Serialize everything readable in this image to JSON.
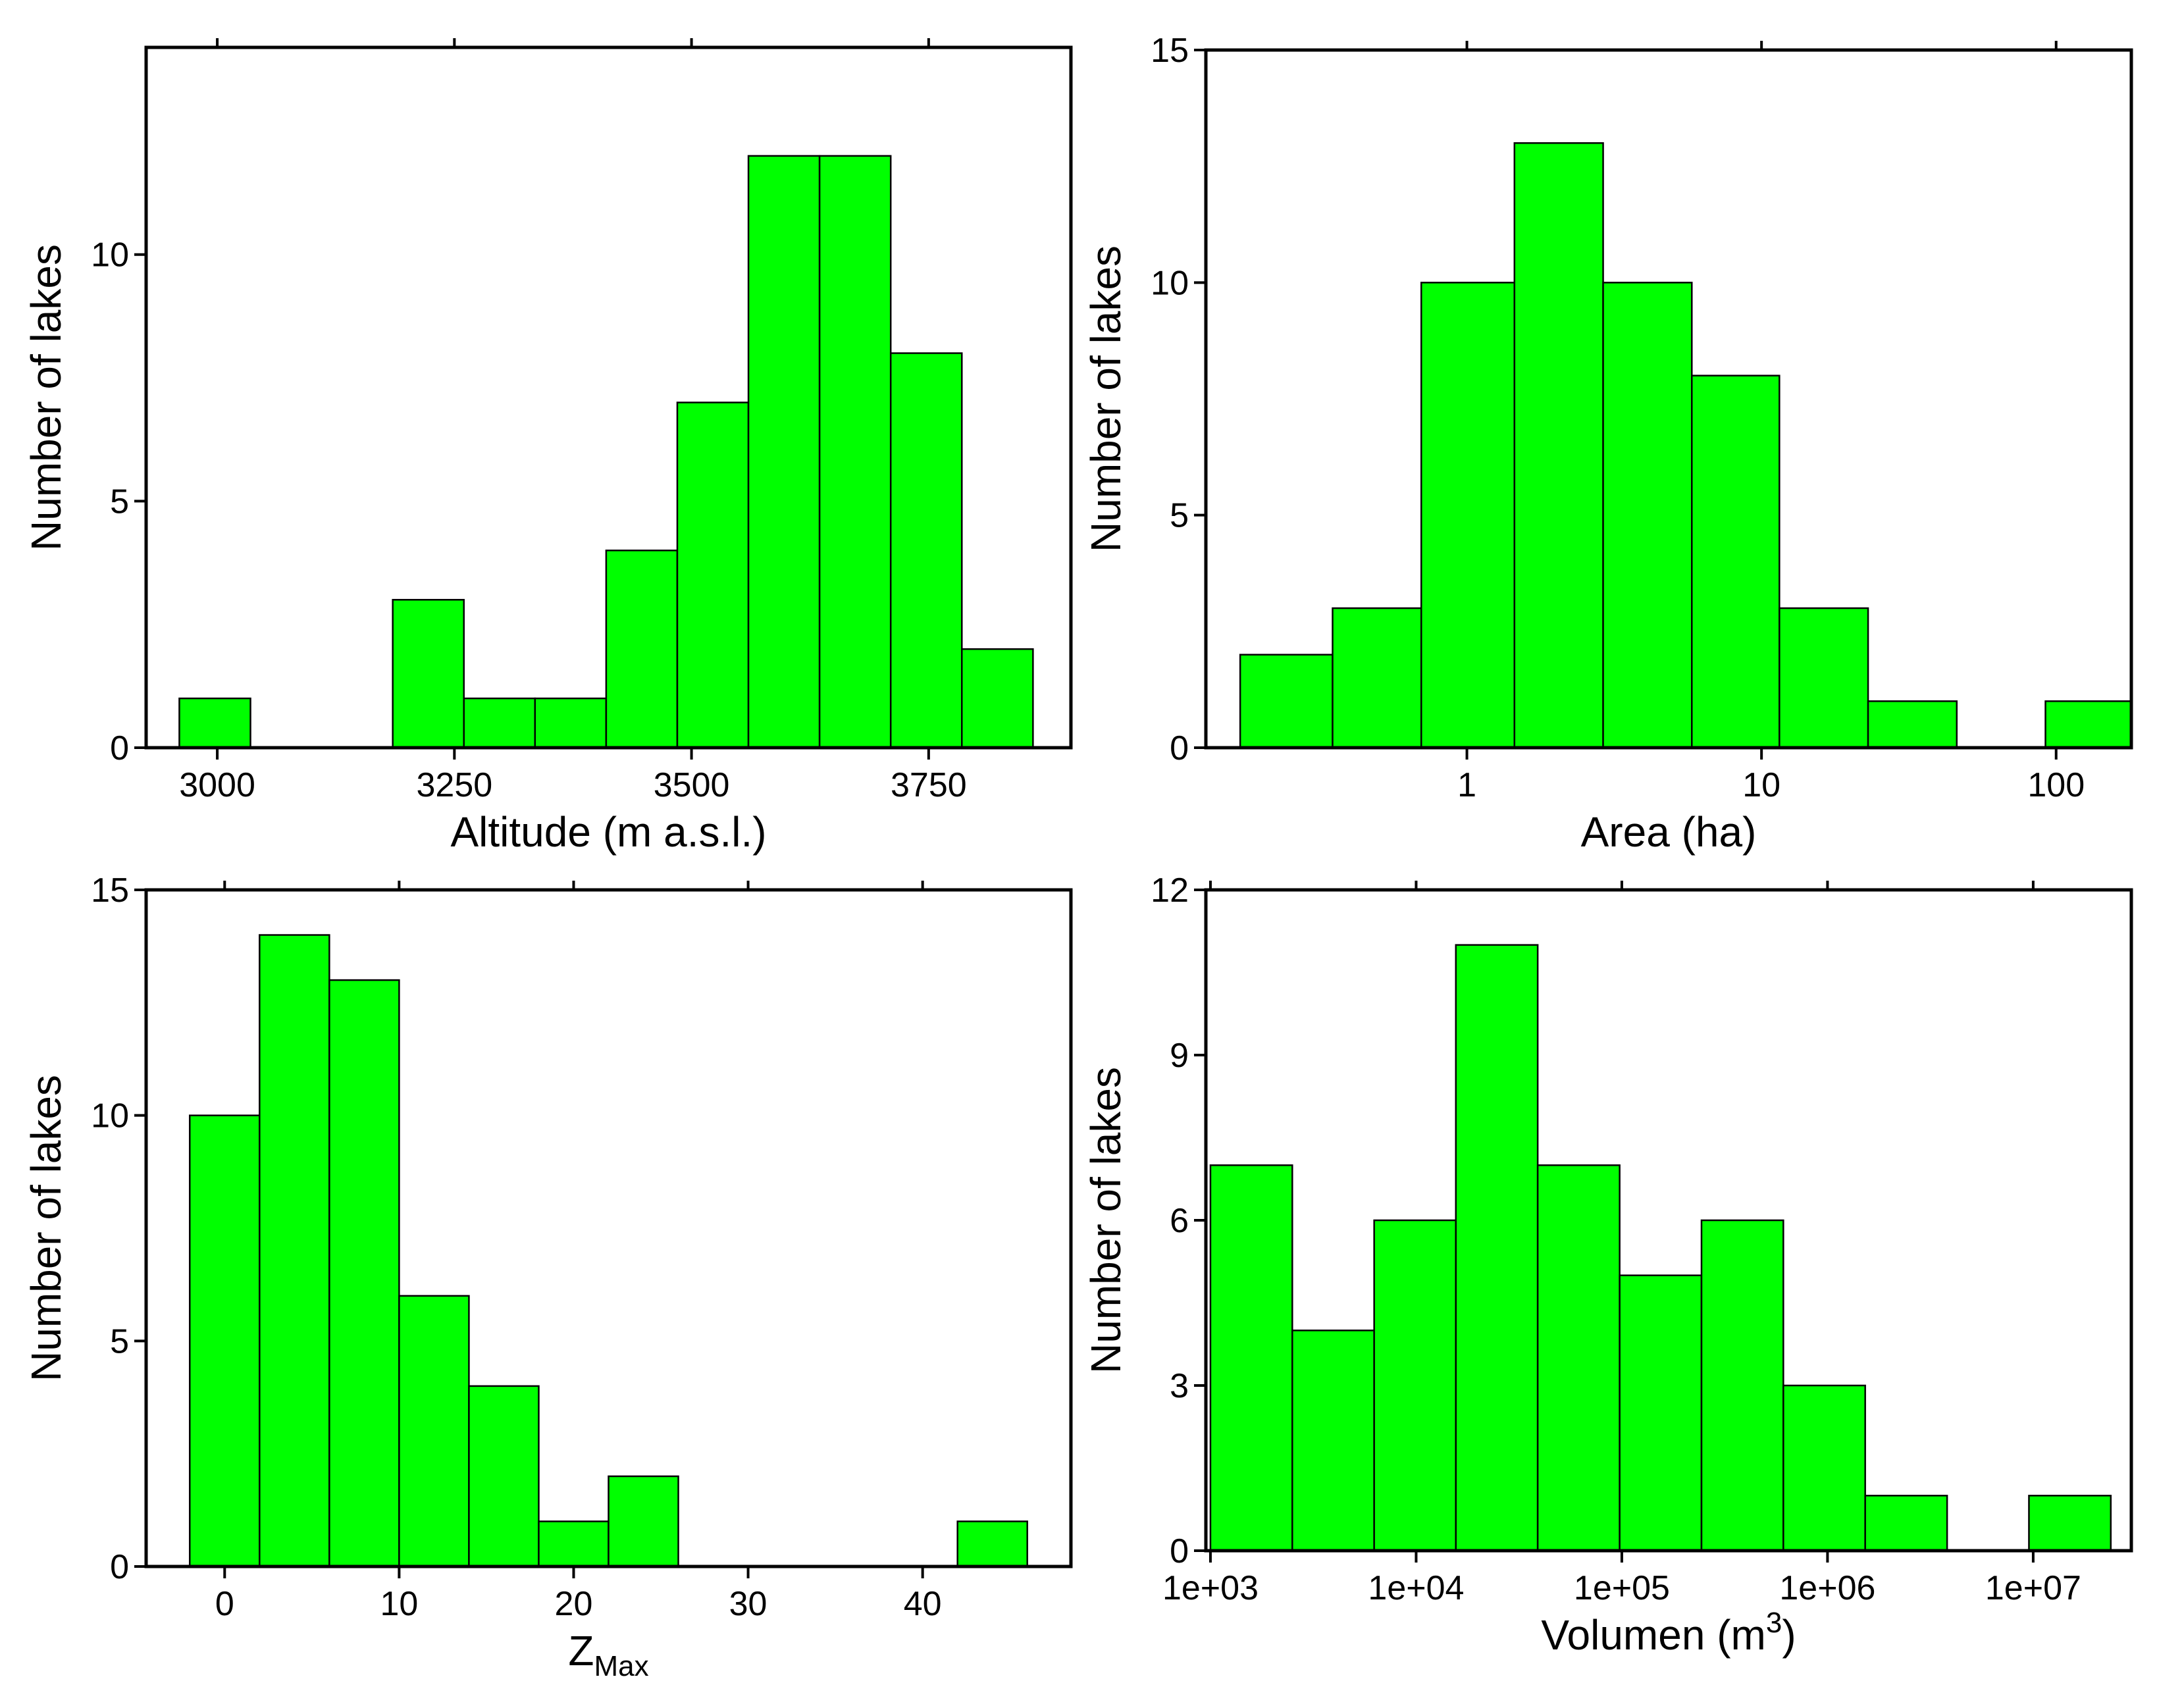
{
  "figure": {
    "bar_color": "#00ff00",
    "edge_color": "#000000"
  },
  "chart_data": [
    {
      "type": "bar",
      "id": "altitude",
      "xlabel": "Altitude (m a.s.l.)",
      "xlabel_parts": [
        {
          "text": "Altitude (m a.s.l.)",
          "style": "normal"
        }
      ],
      "ylabel": "Number of lakes",
      "xscale": "linear",
      "xlim": [
        2925,
        3900
      ],
      "ylim": [
        0,
        14.2
      ],
      "bin_edges": [
        2960,
        3035,
        3110,
        3185,
        3260,
        3335,
        3410,
        3485,
        3560,
        3635,
        3710,
        3785,
        3860
      ],
      "counts": [
        1,
        0,
        0,
        3,
        1,
        1,
        4,
        7,
        12,
        12,
        8,
        2
      ],
      "xticks": [
        3000,
        3250,
        3500,
        3750
      ],
      "xtick_labels": [
        "3000",
        "3250",
        "3500",
        "3750"
      ],
      "yticks": [
        0,
        5,
        10
      ],
      "ytick_labels": [
        "0",
        "5",
        "10"
      ],
      "top_ticks": true
    },
    {
      "type": "bar",
      "id": "area",
      "xlabel": "Area (ha)",
      "xlabel_parts": [
        {
          "text": "Area (ha)",
          "style": "normal"
        }
      ],
      "ylabel": "Number of lakes",
      "xscale": "log10",
      "xlim": [
        0.13,
        180
      ],
      "ylim": [
        0,
        15
      ],
      "bin_edges": [
        0.17,
        0.35,
        0.7,
        1.45,
        2.9,
        5.8,
        11.5,
        23,
        46,
        92,
        180
      ],
      "counts": [
        2,
        3,
        10,
        13,
        10,
        8,
        3,
        1,
        0,
        1
      ],
      "xticks": [
        1,
        10,
        100
      ],
      "xtick_labels": [
        "1",
        "10",
        "100"
      ],
      "yticks": [
        0,
        5,
        10,
        15
      ],
      "ytick_labels": [
        "0",
        "5",
        "10",
        "15"
      ],
      "top_ticks": true
    },
    {
      "type": "bar",
      "id": "zmax",
      "xlabel": "ZMax",
      "xlabel_parts": [
        {
          "text": "Z",
          "style": "normal"
        },
        {
          "text": "Max",
          "style": "sub"
        }
      ],
      "ylabel": "Number of lakes",
      "xscale": "linear",
      "xlim": [
        -4.5,
        48.5
      ],
      "ylim": [
        0,
        15
      ],
      "bin_edges": [
        -2,
        2,
        6,
        10,
        14,
        18,
        22,
        26,
        30,
        34,
        38,
        42,
        46
      ],
      "counts": [
        10,
        14,
        13,
        6,
        4,
        1,
        2,
        0,
        0,
        0,
        0,
        1
      ],
      "xticks": [
        0,
        10,
        20,
        30,
        40
      ],
      "xtick_labels": [
        "0",
        "10",
        "20",
        "30",
        "40"
      ],
      "yticks": [
        0,
        5,
        10,
        15
      ],
      "ytick_labels": [
        "0",
        "5",
        "10",
        "15"
      ],
      "top_ticks": true
    },
    {
      "type": "bar",
      "id": "volumen",
      "xlabel": "Volumen (m3)",
      "xlabel_parts": [
        {
          "text": "Volumen (m",
          "style": "normal"
        },
        {
          "text": "3",
          "style": "sup"
        },
        {
          "text": ")",
          "style": "normal"
        }
      ],
      "ylabel": "Number of lakes",
      "xscale": "log10",
      "xlim": [
        950,
        30000000
      ],
      "ylim": [
        0,
        12
      ],
      "bin_edges": [
        1000,
        2500,
        6250,
        15600,
        39000,
        97600,
        244000,
        610000,
        1525000,
        3815000,
        9535000,
        23840000
      ],
      "counts": [
        7,
        4,
        6,
        11,
        7,
        5,
        6,
        3,
        1,
        0,
        1
      ],
      "xticks": [
        1000,
        10000,
        100000,
        1000000,
        10000000
      ],
      "xtick_labels": [
        "1e+03",
        "1e+04",
        "1e+05",
        "1e+06",
        "1e+07"
      ],
      "yticks": [
        0,
        3,
        6,
        9,
        12
      ],
      "ytick_labels": [
        "0",
        "3",
        "6",
        "9",
        "12"
      ],
      "top_ticks": true
    }
  ]
}
